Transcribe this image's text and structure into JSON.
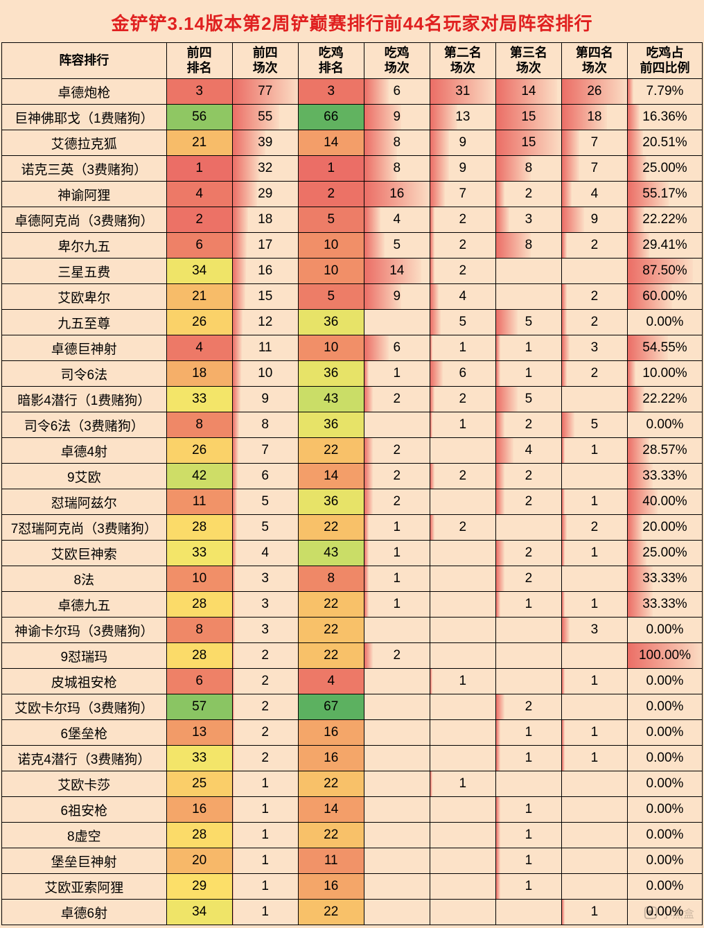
{
  "title": "金铲铲3.14版本第2周铲巅赛排行前44名玩家对局阵容排行",
  "watermark": "小黑盒",
  "colors": {
    "page_bg": "#fce2c8",
    "title_color": "#e02020",
    "border": "#000000",
    "text": "#000000"
  },
  "columns": [
    {
      "key": "name",
      "label": "阵容排行"
    },
    {
      "key": "c1",
      "label": "前四\n排名"
    },
    {
      "key": "c2",
      "label": "前四\n场次"
    },
    {
      "key": "c3",
      "label": "吃鸡\n排名"
    },
    {
      "key": "c4",
      "label": "吃鸡\n场次"
    },
    {
      "key": "c5",
      "label": "第二名\n场次"
    },
    {
      "key": "c6",
      "label": "第三名\n场次"
    },
    {
      "key": "c7",
      "label": "第四名\n场次"
    },
    {
      "key": "c8",
      "label": "吃鸡占\n前四比例"
    }
  ],
  "bar_columns": {
    "c1": {
      "type": "rank",
      "max": 67
    },
    "c2": {
      "type": "grad",
      "max": 77
    },
    "c3": {
      "type": "rank",
      "max": 67
    },
    "c4": {
      "type": "grad",
      "max": 16
    },
    "c5": {
      "type": "grad",
      "max": 31
    },
    "c6": {
      "type": "grad",
      "max": 15
    },
    "c7": {
      "type": "grad",
      "max": 26
    },
    "c8": {
      "type": "grad",
      "max": 100,
      "is_percent": true
    }
  },
  "rank_colors": {
    "low": "#eb6e66",
    "q1": "#f4a469",
    "mid": "#fde769",
    "q3": "#b8d966",
    "high": "#5cb160"
  },
  "grad_color": "#eb6e66",
  "rows": [
    {
      "name": "卓德炮枪",
      "c1": 3,
      "c2": 77,
      "c3": 3,
      "c4": 6,
      "c5": 31,
      "c6": 14,
      "c7": 26,
      "c8": 7.79
    },
    {
      "name": "巨神佛耶戈（1费赌狗）",
      "c1": 56,
      "c2": 55,
      "c3": 66,
      "c4": 9,
      "c5": 13,
      "c6": 15,
      "c7": 18,
      "c8": 16.36
    },
    {
      "name": "艾德拉克狐",
      "c1": 21,
      "c2": 39,
      "c3": 14,
      "c4": 8,
      "c5": 9,
      "c6": 15,
      "c7": 7,
      "c8": 20.51
    },
    {
      "name": "诺克三英（3费赌狗）",
      "c1": 1,
      "c2": 32,
      "c3": 1,
      "c4": 8,
      "c5": 9,
      "c6": 8,
      "c7": 7,
      "c8": 25.0
    },
    {
      "name": "神谕阿狸",
      "c1": 4,
      "c2": 29,
      "c3": 2,
      "c4": 16,
      "c5": 7,
      "c6": 2,
      "c7": 4,
      "c8": 55.17
    },
    {
      "name": "卓德阿克尚（3费赌狗）",
      "c1": 2,
      "c2": 18,
      "c3": 5,
      "c4": 4,
      "c5": 2,
      "c6": 3,
      "c7": 9,
      "c8": 22.22
    },
    {
      "name": "卑尔九五",
      "c1": 6,
      "c2": 17,
      "c3": 10,
      "c4": 5,
      "c5": 2,
      "c6": 8,
      "c7": 2,
      "c8": 29.41
    },
    {
      "name": "三星五费",
      "c1": 34,
      "c2": 16,
      "c3": 10,
      "c4": 14,
      "c5": 2,
      "c6": null,
      "c7": null,
      "c8": 87.5
    },
    {
      "name": "艾欧卑尔",
      "c1": 21,
      "c2": 15,
      "c3": 5,
      "c4": 9,
      "c5": 4,
      "c6": null,
      "c7": 2,
      "c8": 60.0
    },
    {
      "name": "九五至尊",
      "c1": 26,
      "c2": 12,
      "c3": 36,
      "c4": null,
      "c5": 5,
      "c6": 5,
      "c7": 2,
      "c8": 0.0
    },
    {
      "name": "卓德巨神射",
      "c1": 4,
      "c2": 11,
      "c3": 10,
      "c4": 6,
      "c5": 1,
      "c6": 1,
      "c7": 3,
      "c8": 54.55
    },
    {
      "name": "司令6法",
      "c1": 18,
      "c2": 10,
      "c3": 36,
      "c4": 1,
      "c5": 6,
      "c6": 1,
      "c7": 2,
      "c8": 10.0
    },
    {
      "name": "暗影4潜行（1费赌狗）",
      "c1": 33,
      "c2": 9,
      "c3": 43,
      "c4": 2,
      "c5": 2,
      "c6": 5,
      "c7": null,
      "c8": 22.22
    },
    {
      "name": "司令6法（3费赌狗）",
      "c1": 8,
      "c2": 8,
      "c3": 36,
      "c4": null,
      "c5": 1,
      "c6": 2,
      "c7": 5,
      "c8": 0.0
    },
    {
      "name": "卓德4射",
      "c1": 26,
      "c2": 7,
      "c3": 22,
      "c4": 2,
      "c5": null,
      "c6": 4,
      "c7": 1,
      "c8": 28.57
    },
    {
      "name": "9艾欧",
      "c1": 42,
      "c2": 6,
      "c3": 14,
      "c4": 2,
      "c5": 2,
      "c6": 2,
      "c7": null,
      "c8": 33.33
    },
    {
      "name": "怼瑞阿兹尔",
      "c1": 11,
      "c2": 5,
      "c3": 36,
      "c4": 2,
      "c5": null,
      "c6": 2,
      "c7": 1,
      "c8": 40.0
    },
    {
      "name": "7怼瑞阿克尚（3费赌狗）",
      "c1": 28,
      "c2": 5,
      "c3": 22,
      "c4": 1,
      "c5": 2,
      "c6": null,
      "c7": 2,
      "c8": 20.0
    },
    {
      "name": "艾欧巨神索",
      "c1": 33,
      "c2": 4,
      "c3": 43,
      "c4": 1,
      "c5": null,
      "c6": 2,
      "c7": 1,
      "c8": 25.0
    },
    {
      "name": "8法",
      "c1": 10,
      "c2": 3,
      "c3": 8,
      "c4": 1,
      "c5": null,
      "c6": 2,
      "c7": null,
      "c8": 33.33
    },
    {
      "name": "卓德九五",
      "c1": 28,
      "c2": 3,
      "c3": 22,
      "c4": 1,
      "c5": null,
      "c6": 1,
      "c7": 1,
      "c8": 33.33
    },
    {
      "name": "神谕卡尔玛（3费赌狗）",
      "c1": 8,
      "c2": 3,
      "c3": 22,
      "c4": null,
      "c5": null,
      "c6": null,
      "c7": 3,
      "c8": 0.0
    },
    {
      "name": "9怼瑞玛",
      "c1": 28,
      "c2": 2,
      "c3": 22,
      "c4": 2,
      "c5": null,
      "c6": null,
      "c7": null,
      "c8": 100.0
    },
    {
      "name": "皮城祖安枪",
      "c1": 6,
      "c2": 2,
      "c3": 4,
      "c4": null,
      "c5": 1,
      "c6": null,
      "c7": 1,
      "c8": 0.0
    },
    {
      "name": "艾欧卡尔玛（3费赌狗）",
      "c1": 57,
      "c2": 2,
      "c3": 67,
      "c4": null,
      "c5": null,
      "c6": 2,
      "c7": null,
      "c8": 0.0
    },
    {
      "name": "6堡垒枪",
      "c1": 13,
      "c2": 2,
      "c3": 16,
      "c4": null,
      "c5": null,
      "c6": 1,
      "c7": 1,
      "c8": 0.0
    },
    {
      "name": "诺克4潜行（3费赌狗）",
      "c1": 33,
      "c2": 2,
      "c3": 16,
      "c4": null,
      "c5": null,
      "c6": 1,
      "c7": 1,
      "c8": 0.0
    },
    {
      "name": "艾欧卡莎",
      "c1": 25,
      "c2": 1,
      "c3": 22,
      "c4": null,
      "c5": 1,
      "c6": null,
      "c7": null,
      "c8": 0.0
    },
    {
      "name": "6祖安枪",
      "c1": 16,
      "c2": 1,
      "c3": 14,
      "c4": null,
      "c5": null,
      "c6": 1,
      "c7": null,
      "c8": 0.0
    },
    {
      "name": "8虚空",
      "c1": 28,
      "c2": 1,
      "c3": 22,
      "c4": null,
      "c5": null,
      "c6": 1,
      "c7": null,
      "c8": 0.0
    },
    {
      "name": "堡垒巨神射",
      "c1": 20,
      "c2": 1,
      "c3": 11,
      "c4": null,
      "c5": null,
      "c6": 1,
      "c7": null,
      "c8": 0.0
    },
    {
      "name": "艾欧亚索阿狸",
      "c1": 29,
      "c2": 1,
      "c3": 16,
      "c4": null,
      "c5": null,
      "c6": 1,
      "c7": null,
      "c8": 0.0
    },
    {
      "name": "卓德6射",
      "c1": 34,
      "c2": 1,
      "c3": 22,
      "c4": null,
      "c5": null,
      "c6": null,
      "c7": 1,
      "c8": 0.0
    }
  ]
}
